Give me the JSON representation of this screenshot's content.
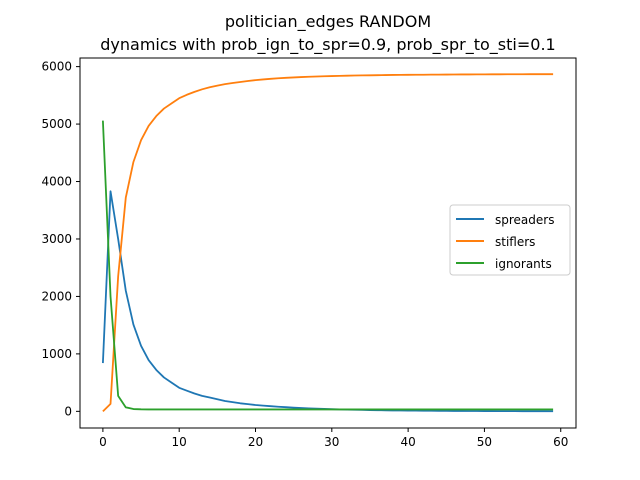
{
  "chart_data": {
    "type": "line",
    "title_lines": [
      "politician_edges RANDOM",
      "dynamics with prob_ign_to_spr=0.9, prob_spr_to_sti=0.1"
    ],
    "xlabel": "",
    "ylabel": "",
    "xlim": [
      -3,
      62
    ],
    "ylim": [
      -290,
      6150
    ],
    "x_ticks": [
      0,
      10,
      20,
      30,
      40,
      50,
      60
    ],
    "y_ticks": [
      0,
      1000,
      2000,
      3000,
      4000,
      5000,
      6000
    ],
    "grid": false,
    "legend_position": "center-right",
    "x": [
      0,
      1,
      2,
      3,
      4,
      5,
      6,
      7,
      8,
      9,
      10,
      11,
      12,
      13,
      14,
      15,
      16,
      17,
      18,
      19,
      20,
      21,
      22,
      23,
      24,
      25,
      26,
      27,
      28,
      29,
      30,
      31,
      32,
      33,
      34,
      35,
      36,
      37,
      38,
      39,
      40,
      41,
      42,
      43,
      44,
      45,
      46,
      47,
      48,
      49,
      50,
      51,
      52,
      53,
      54,
      55,
      56,
      57,
      58,
      59
    ],
    "series": [
      {
        "name": "spreaders",
        "color": "#1f77b4",
        "values": [
          840,
          3830,
          3000,
          2100,
          1510,
          1140,
          890,
          720,
          590,
          500,
          410,
          360,
          310,
          270,
          240,
          210,
          180,
          160,
          140,
          125,
          110,
          100,
          90,
          80,
          72,
          65,
          58,
          52,
          47,
          42,
          38,
          34,
          31,
          28,
          25,
          22,
          20,
          18,
          16,
          15,
          13,
          12,
          11,
          10,
          9,
          8,
          7,
          7,
          6,
          6,
          5,
          5,
          4,
          4,
          4,
          3,
          3,
          3,
          3,
          2
        ]
      },
      {
        "name": "stiflers",
        "color": "#ff7f0e",
        "values": [
          0,
          130,
          2350,
          3720,
          4340,
          4720,
          4970,
          5140,
          5270,
          5360,
          5450,
          5510,
          5560,
          5605,
          5640,
          5670,
          5695,
          5715,
          5733,
          5750,
          5765,
          5777,
          5788,
          5797,
          5805,
          5812,
          5818,
          5823,
          5828,
          5832,
          5836,
          5839,
          5842,
          5845,
          5847,
          5849,
          5851,
          5853,
          5855,
          5856,
          5857,
          5858,
          5859,
          5860,
          5861,
          5862,
          5863,
          5864,
          5864,
          5865,
          5865,
          5866,
          5866,
          5867,
          5867,
          5867,
          5868,
          5868,
          5868,
          5868
        ]
      },
      {
        "name": "ignorants",
        "color": "#2ca02c",
        "values": [
          5060,
          2000,
          270,
          70,
          40,
          35,
          33,
          33,
          33,
          33,
          33,
          33,
          33,
          33,
          33,
          33,
          33,
          33,
          33,
          33,
          33,
          33,
          33,
          33,
          33,
          33,
          33,
          33,
          33,
          33,
          33,
          33,
          33,
          33,
          33,
          33,
          33,
          33,
          33,
          33,
          33,
          33,
          33,
          33,
          33,
          33,
          33,
          33,
          33,
          33,
          33,
          33,
          33,
          33,
          33,
          33,
          33,
          33,
          33,
          33
        ]
      }
    ]
  }
}
